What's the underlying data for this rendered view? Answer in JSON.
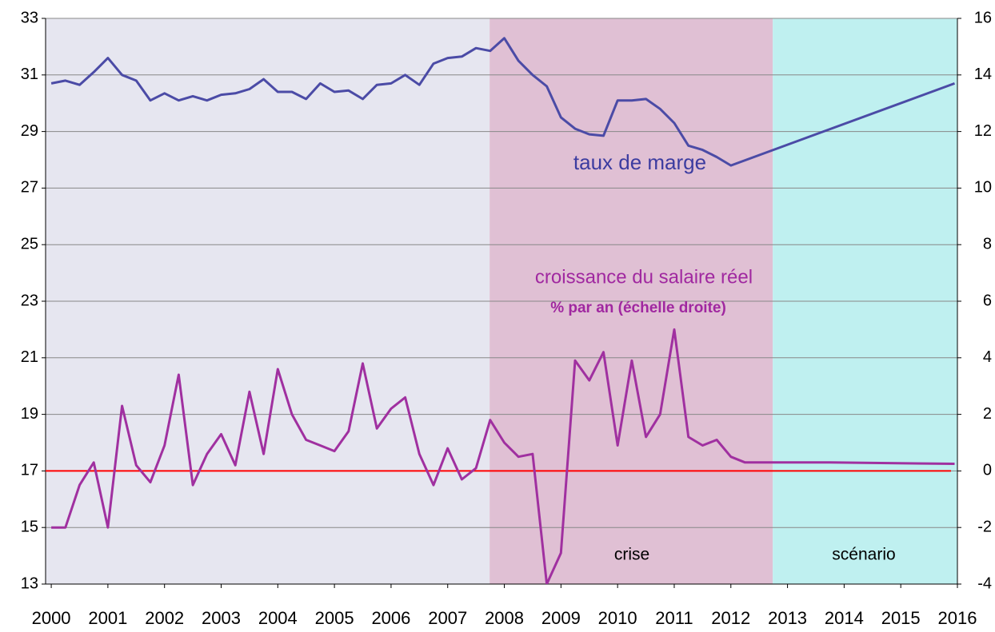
{
  "chart_data": {
    "type": "line",
    "xlim": [
      1999.9,
      2016.0
    ],
    "xticks": [
      2000,
      2001,
      2002,
      2003,
      2004,
      2005,
      2006,
      2007,
      2008,
      2009,
      2010,
      2011,
      2012,
      2013,
      2014,
      2015,
      2016
    ],
    "ylim": [
      13,
      33
    ],
    "yticks": [
      13,
      15,
      17,
      19,
      21,
      23,
      25,
      27,
      29,
      31,
      33
    ],
    "y2lim": [
      -4,
      16
    ],
    "y2ticks": [
      -4,
      -2,
      0,
      2,
      4,
      6,
      8,
      10,
      12,
      14,
      16
    ],
    "grid": true,
    "regions": [
      {
        "start": 1999.9,
        "end": 2007.74,
        "color": "#e6e6f0"
      },
      {
        "start": 2007.74,
        "end": 2012.74,
        "color": "#e0c0d4",
        "label": "crise"
      },
      {
        "start": 2012.74,
        "end": 2016.0,
        "color": "#bff0f0",
        "label": "scénario"
      }
    ],
    "reference_line": {
      "axis": "y2",
      "value": 0,
      "color": "#ff0000"
    },
    "annotations": [
      "taux de marge",
      "croissance du salaire réel",
      "% par an (échelle droite)"
    ],
    "series": [
      {
        "name": "taux de marge",
        "color": "#4b4ba6",
        "x": [
          2000.0,
          2000.25,
          2000.5,
          2000.75,
          2001.0,
          2001.25,
          2001.5,
          2001.75,
          2002.0,
          2002.25,
          2002.5,
          2002.75,
          2003.0,
          2003.25,
          2003.5,
          2003.75,
          2004.0,
          2004.25,
          2004.5,
          2004.75,
          2005.0,
          2005.25,
          2005.5,
          2005.75,
          2006.0,
          2006.25,
          2006.5,
          2006.75,
          2007.0,
          2007.25,
          2007.5,
          2007.75,
          2008.0,
          2008.25,
          2008.5,
          2008.75,
          2009.0,
          2009.25,
          2009.5,
          2009.75,
          2010.0,
          2010.25,
          2010.5,
          2010.75,
          2011.0,
          2011.25,
          2011.5,
          2011.75,
          2012.0,
          2015.95
        ],
        "values": [
          30.7,
          30.8,
          30.65,
          31.1,
          31.6,
          31.0,
          30.8,
          30.1,
          30.35,
          30.1,
          30.25,
          30.1,
          30.3,
          30.35,
          30.5,
          30.85,
          30.4,
          30.4,
          30.15,
          30.7,
          30.4,
          30.45,
          30.15,
          30.65,
          30.7,
          31.0,
          30.65,
          31.4,
          31.6,
          31.65,
          31.95,
          31.85,
          32.3,
          31.5,
          31.0,
          30.6,
          29.5,
          29.1,
          28.9,
          28.85,
          30.1,
          30.1,
          30.15,
          29.8,
          29.3,
          28.5,
          28.35,
          28.1,
          27.8,
          30.7
        ]
      },
      {
        "name": "croissance du salaire réel",
        "color": "#a030a0",
        "axis": "y2",
        "x": [
          2000.0,
          2000.25,
          2000.5,
          2000.75,
          2001.0,
          2001.25,
          2001.5,
          2001.75,
          2002.0,
          2002.25,
          2002.5,
          2002.75,
          2003.0,
          2003.25,
          2003.5,
          2003.75,
          2004.0,
          2004.25,
          2004.5,
          2004.75,
          2005.0,
          2005.25,
          2005.5,
          2005.75,
          2006.0,
          2006.25,
          2006.5,
          2006.75,
          2007.0,
          2007.25,
          2007.5,
          2007.75,
          2008.0,
          2008.25,
          2008.5,
          2008.75,
          2009.0,
          2009.25,
          2009.5,
          2009.75,
          2010.0,
          2010.25,
          2010.5,
          2010.75,
          2011.0,
          2011.25,
          2011.5,
          2011.75,
          2012.0,
          2012.25,
          2013.75,
          2015.95
        ],
        "values": [
          -2,
          -2,
          -0.5,
          0.3,
          -2,
          2.3,
          0.2,
          -0.4,
          0.9,
          3.4,
          -0.5,
          0.6,
          1.3,
          0.2,
          2.8,
          0.6,
          3.6,
          2.0,
          1.1,
          0.9,
          0.7,
          1.4,
          3.8,
          1.5,
          2.2,
          2.6,
          0.6,
          -0.5,
          0.8,
          -0.3,
          0.1,
          1.8,
          1.0,
          0.5,
          0.6,
          -4,
          -2.9,
          3.9,
          3.2,
          4.2,
          0.9,
          3.9,
          1.2,
          2.0,
          5.0,
          1.2,
          0.9,
          1.1,
          0.5,
          0.3,
          0.3,
          0.25
        ]
      }
    ]
  }
}
